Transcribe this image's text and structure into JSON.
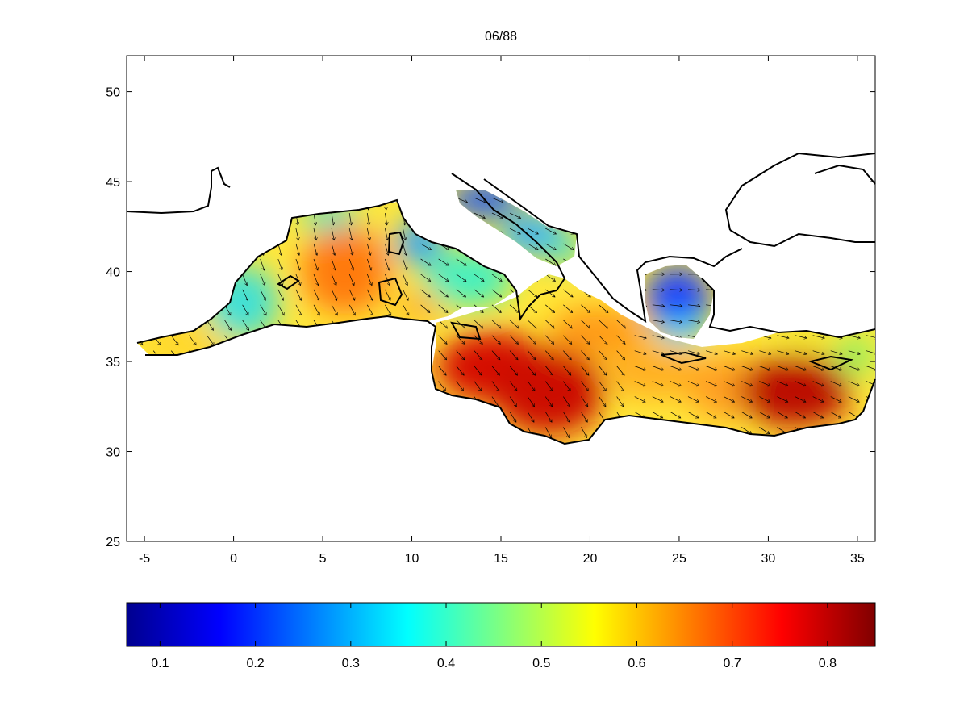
{
  "figure": {
    "title": "06/88"
  },
  "map": {
    "x_axis": {
      "range": [
        -6,
        36
      ],
      "ticks": [
        "-5",
        "0",
        "5",
        "10",
        "15",
        "20",
        "25",
        "30",
        "35"
      ]
    },
    "y_axis": {
      "range": [
        25,
        52
      ],
      "ticks": [
        "25",
        "30",
        "35",
        "40",
        "45",
        "50"
      ]
    },
    "field": "gridded scalar field over the Mediterranean Sea with superimposed direction arrows",
    "hotspots": [
      {
        "lon": 6.0,
        "lat": 40.8,
        "value": 0.68
      },
      {
        "lon": 15.0,
        "lat": 34.2,
        "value": 0.8
      },
      {
        "lon": 18.5,
        "lat": 33.2,
        "value": 0.78
      },
      {
        "lon": 31.5,
        "lat": 33.3,
        "value": 0.84
      }
    ],
    "lowspots": [
      {
        "lon": 15.0,
        "lat": 44.0,
        "value": 0.2
      },
      {
        "lon": 25.0,
        "lat": 39.5,
        "value": 0.18
      }
    ]
  },
  "colorbar": {
    "colormap": "jet",
    "range": [
      0.065,
      0.85
    ],
    "ticks": [
      "0.1",
      "0.2",
      "0.3",
      "0.4",
      "0.5",
      "0.6",
      "0.7",
      "0.8"
    ],
    "colors": [
      "#00008f",
      "#0000ff",
      "#00ffff",
      "#ffff00",
      "#ff0000",
      "#800000"
    ]
  }
}
